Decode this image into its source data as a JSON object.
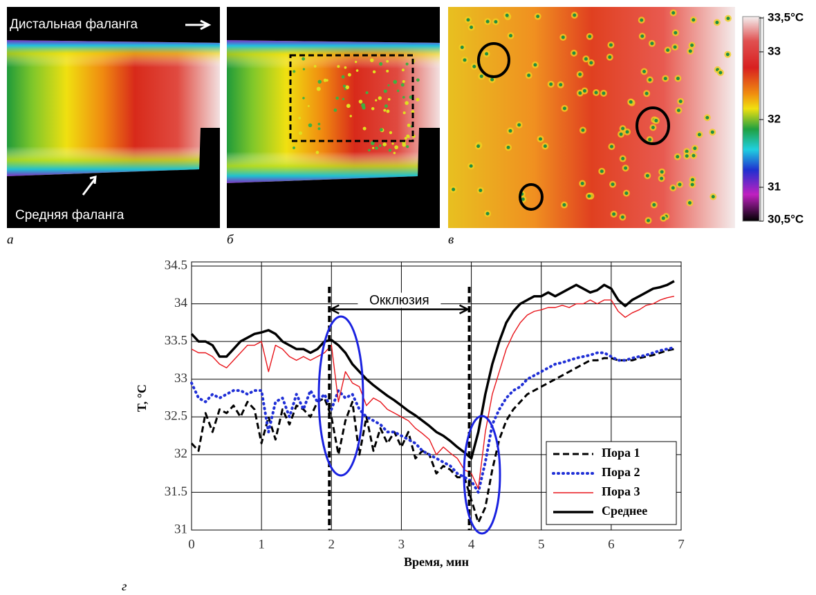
{
  "panels": {
    "a": {
      "label": "а",
      "distal": "Дистальная фаланга",
      "middle": "Средняя фаланга"
    },
    "b": {
      "label": "б"
    },
    "c": {
      "label": "в"
    },
    "d": {
      "label": "г"
    }
  },
  "colorbar": {
    "lim": [
      30.5,
      33.5
    ],
    "ticks": [
      {
        "value": 33.5,
        "label": "33,5°C"
      },
      33,
      32,
      31,
      {
        "value": 30.5,
        "label": "30,5°C"
      }
    ]
  },
  "chart_data": {
    "type": "line",
    "xlabel": "Время, мин",
    "ylabel": "T, °C",
    "xlim": [
      0,
      7
    ],
    "ylim": [
      31,
      34.5
    ],
    "xticks": [
      0,
      1,
      2,
      3,
      4,
      5,
      6,
      7
    ],
    "yticks": [
      31,
      31.5,
      32,
      32.5,
      33,
      33.5,
      34,
      34.5
    ],
    "grid": true,
    "legend": "lower right",
    "annotation": {
      "label": "Окклюзия",
      "start": 1.97,
      "end": 3.97
    },
    "x": [
      0,
      0.1,
      0.2,
      0.3,
      0.4,
      0.5,
      0.6,
      0.7,
      0.8,
      0.9,
      1,
      1.1,
      1.2,
      1.3,
      1.4,
      1.5,
      1.6,
      1.7,
      1.8,
      1.9,
      2,
      2.1,
      2.2,
      2.3,
      2.4,
      2.5,
      2.6,
      2.7,
      2.8,
      2.9,
      3,
      3.1,
      3.2,
      3.3,
      3.4,
      3.5,
      3.6,
      3.7,
      3.8,
      3.9,
      4,
      4.1,
      4.2,
      4.3,
      4.4,
      4.5,
      4.6,
      4.7,
      4.8,
      4.9,
      5,
      5.1,
      5.2,
      5.3,
      5.4,
      5.5,
      5.6,
      5.7,
      5.8,
      5.9,
      6,
      6.1,
      6.2,
      6.3,
      6.4,
      6.5,
      6.6,
      6.7,
      6.8,
      6.9
    ],
    "series": [
      {
        "name": "Пора 1",
        "color": "#000000",
        "linestyle": "dashed",
        "values": [
          32.15,
          32.05,
          32.55,
          32.3,
          32.6,
          32.55,
          32.65,
          32.5,
          32.7,
          32.6,
          32.15,
          32.5,
          32.2,
          32.6,
          32.4,
          32.65,
          32.6,
          32.5,
          32.7,
          32.75,
          32.5,
          32.0,
          32.45,
          32.7,
          32.0,
          32.5,
          32.05,
          32.35,
          32.15,
          32.3,
          32.1,
          32.3,
          31.95,
          32.05,
          32.0,
          31.75,
          31.85,
          31.8,
          31.7,
          31.7,
          31.4,
          31.1,
          31.3,
          31.8,
          32.2,
          32.45,
          32.6,
          32.7,
          32.8,
          32.85,
          32.9,
          32.95,
          33.0,
          33.05,
          33.1,
          33.15,
          33.2,
          33.25,
          33.25,
          33.28,
          33.28,
          33.25,
          33.25,
          33.25,
          33.28,
          33.3,
          33.32,
          33.35,
          33.38,
          33.4
        ]
      },
      {
        "name": "Пора 2",
        "color": "#1f2fd6",
        "linestyle": "dotted",
        "values": [
          32.95,
          32.75,
          32.7,
          32.8,
          32.75,
          32.8,
          32.85,
          32.85,
          32.8,
          32.85,
          32.85,
          32.3,
          32.7,
          32.75,
          32.5,
          32.8,
          32.6,
          32.85,
          32.7,
          32.8,
          32.6,
          32.85,
          32.75,
          32.8,
          32.6,
          32.5,
          32.45,
          32.4,
          32.3,
          32.3,
          32.25,
          32.2,
          32.15,
          32.05,
          32.0,
          31.95,
          31.9,
          31.85,
          31.75,
          31.7,
          31.65,
          31.5,
          31.9,
          32.4,
          32.6,
          32.75,
          32.85,
          32.9,
          33.0,
          33.05,
          33.1,
          33.15,
          33.2,
          33.22,
          33.25,
          33.28,
          33.3,
          33.32,
          33.35,
          33.35,
          33.3,
          33.25,
          33.25,
          33.28,
          33.3,
          33.32,
          33.35,
          33.38,
          33.4,
          33.42
        ]
      },
      {
        "name": "Пора 3",
        "color": "#e8141a",
        "linestyle": "thin",
        "values": [
          33.4,
          33.35,
          33.35,
          33.3,
          33.2,
          33.15,
          33.25,
          33.35,
          33.45,
          33.45,
          33.5,
          33.1,
          33.45,
          33.4,
          33.3,
          33.25,
          33.3,
          33.25,
          33.3,
          33.35,
          33.45,
          32.7,
          33.1,
          32.95,
          32.9,
          32.65,
          32.75,
          32.7,
          32.6,
          32.55,
          32.5,
          32.45,
          32.35,
          32.28,
          32.2,
          32.0,
          32.1,
          32.02,
          31.95,
          31.8,
          31.75,
          31.55,
          32.3,
          32.8,
          33.1,
          33.4,
          33.6,
          33.75,
          33.85,
          33.9,
          33.92,
          33.95,
          33.95,
          33.98,
          33.95,
          34.0,
          34.0,
          34.05,
          34.0,
          34.05,
          34.05,
          33.9,
          33.82,
          33.88,
          33.92,
          33.98,
          34.0,
          34.05,
          34.08,
          34.1
        ]
      },
      {
        "name": "Среднее",
        "color": "#000000",
        "linestyle": "thick",
        "values": [
          33.6,
          33.5,
          33.5,
          33.45,
          33.3,
          33.3,
          33.4,
          33.5,
          33.55,
          33.6,
          33.62,
          33.65,
          33.6,
          33.5,
          33.45,
          33.4,
          33.4,
          33.35,
          33.4,
          33.5,
          33.52,
          33.45,
          33.35,
          33.2,
          33.1,
          33.0,
          32.92,
          32.85,
          32.78,
          32.72,
          32.65,
          32.58,
          32.52,
          32.45,
          32.38,
          32.3,
          32.25,
          32.18,
          32.1,
          32.03,
          31.95,
          32.3,
          32.8,
          33.2,
          33.5,
          33.75,
          33.9,
          34.0,
          34.05,
          34.1,
          34.1,
          34.15,
          34.1,
          34.15,
          34.2,
          34.25,
          34.2,
          34.15,
          34.18,
          34.25,
          34.2,
          34.05,
          33.97,
          34.05,
          34.1,
          34.15,
          34.2,
          34.22,
          34.25,
          34.3
        ]
      }
    ]
  }
}
